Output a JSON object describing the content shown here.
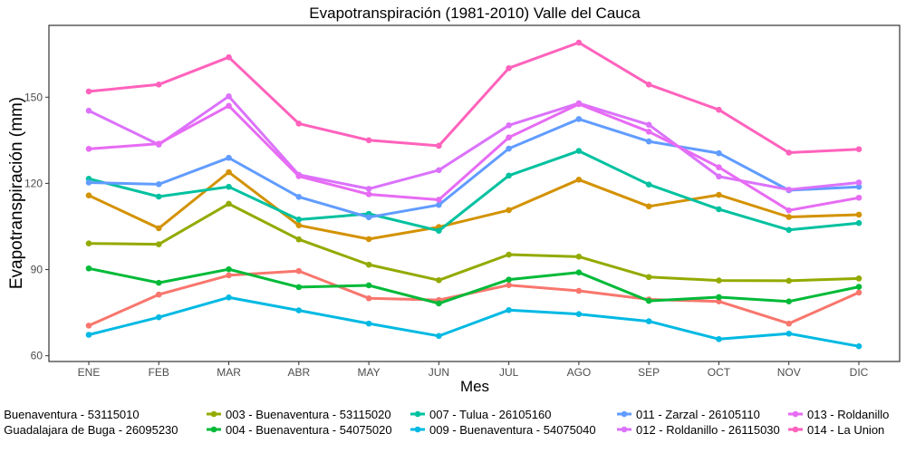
{
  "chart_data": {
    "type": "line",
    "title": "Evapotranspiración (1981-2010)  Valle del Cauca",
    "xlabel": "Mes",
    "ylabel": "Evapotranspiración  (mm)",
    "categories": [
      "ENE",
      "FEB",
      "MAR",
      "ABR",
      "MAY",
      "JUN",
      "JUL",
      "AGO",
      "SEP",
      "OCT",
      "NOV",
      "DIC"
    ],
    "ylim": [
      58,
      175
    ],
    "yticks": [
      60,
      90,
      120,
      150
    ],
    "grid": false,
    "legend_position": "bottom",
    "series": [
      {
        "name": "001 - Buenaventura - 53115010",
        "color": "#F8766D",
        "values": [
          70.5,
          81.3,
          88.0,
          89.5,
          80.0,
          79.4,
          84.6,
          82.6,
          79.6,
          78.9,
          71.2,
          82.0
        ]
      },
      {
        "name": "002 - Guadalajara de Buga - 26095230",
        "color": "#D39200",
        "values": [
          115.8,
          104.4,
          123.9,
          105.4,
          100.6,
          104.8,
          110.7,
          121.3,
          112.0,
          116.0,
          108.3,
          109.1
        ]
      },
      {
        "name": "003 - Buenaventura - 53115020",
        "color": "#93AA00",
        "values": [
          99.1,
          98.8,
          112.9,
          100.5,
          91.7,
          86.3,
          95.2,
          94.5,
          87.4,
          86.2,
          86.1,
          86.9
        ]
      },
      {
        "name": "004 - Buenaventura - 54075020",
        "color": "#00BA38",
        "values": [
          90.4,
          85.4,
          90.1,
          83.9,
          84.5,
          78.2,
          86.5,
          89.0,
          79.1,
          80.4,
          78.9,
          84.0
        ]
      },
      {
        "name": "007 - Tulua - 26105160",
        "color": "#00C19F",
        "values": [
          121.6,
          115.4,
          118.8,
          107.4,
          109.4,
          103.5,
          122.7,
          131.3,
          119.6,
          111.0,
          103.8,
          106.2
        ]
      },
      {
        "name": "009 - Buenaventura - 54075040",
        "color": "#00B9E3",
        "values": [
          67.3,
          73.4,
          80.3,
          75.8,
          71.2,
          66.9,
          75.9,
          74.5,
          72.0,
          65.8,
          67.7,
          63.3
        ]
      },
      {
        "name": "011 - Zarzal - 26105110",
        "color": "#619CFF",
        "values": [
          120.3,
          119.7,
          128.9,
          115.3,
          108.2,
          112.5,
          132.1,
          142.4,
          134.6,
          130.5,
          117.6,
          118.8
        ]
      },
      {
        "name": "012 - Roldanillo - 26115030",
        "color": "#DB72FB",
        "values": [
          145.3,
          133.5,
          150.3,
          123.0,
          118.1,
          124.6,
          140.2,
          147.9,
          140.4,
          122.4,
          117.8,
          120.3
        ]
      },
      {
        "name": "013 - Roldanillo",
        "color": "#E76BF3",
        "values": [
          132.0,
          133.8,
          147.0,
          122.5,
          116.2,
          114.3,
          136.0,
          147.6,
          138.0,
          125.6,
          110.6,
          115.0
        ]
      },
      {
        "name": "014 - La Union",
        "color": "#FF62BC",
        "values": [
          152.0,
          154.4,
          163.9,
          140.8,
          135.0,
          133.1,
          160.1,
          169.0,
          154.4,
          145.6,
          130.7,
          131.9
        ]
      }
    ]
  }
}
